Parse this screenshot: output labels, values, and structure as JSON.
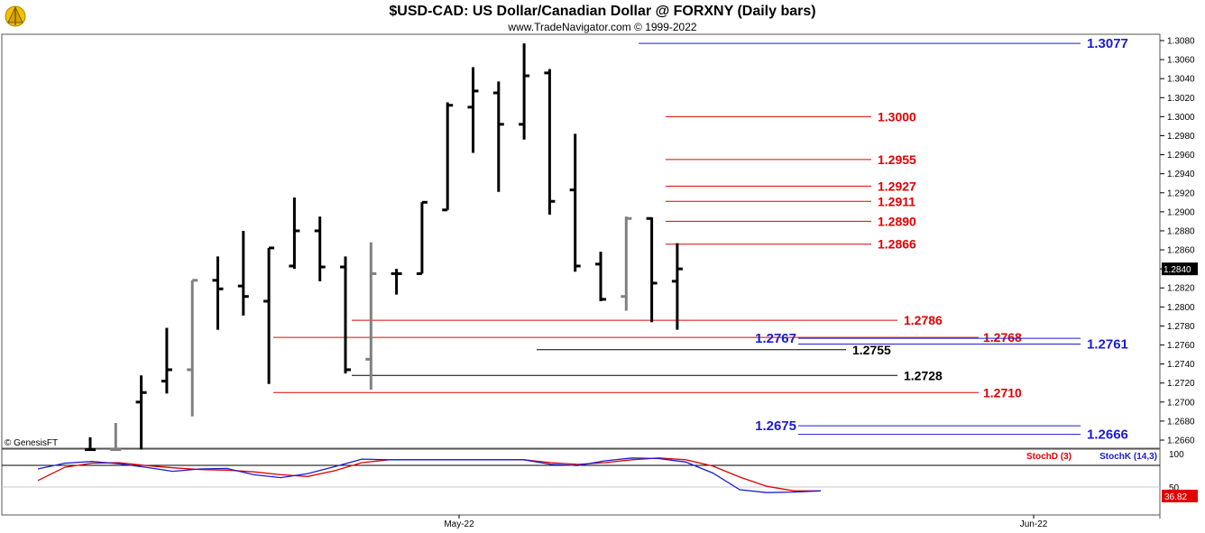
{
  "chart_data": {
    "type": "ohlc",
    "title": "$USD-CAD:  US Dollar/Canadian Dollar @ FORXNY  (Daily bars)",
    "subtitle": "www.TradeNavigator.com © 1999-2022",
    "watermark": "© GenesisFT",
    "ylim": [
      1.265,
      1.309
    ],
    "y_ticks": [
      "1.3080",
      "1.3060",
      "1.3040",
      "1.3020",
      "1.3000",
      "1.2980",
      "1.2960",
      "1.2940",
      "1.2920",
      "1.2900",
      "1.2880",
      "1.2860",
      "1.2840",
      "1.2820",
      "1.2800",
      "1.2780",
      "1.2760",
      "1.2740",
      "1.2720",
      "1.2700",
      "1.2680",
      "1.2660"
    ],
    "last_price": "1.2840",
    "x_labels": [
      "May-22",
      "Jun-22"
    ],
    "bars": [
      {
        "o": 1.265,
        "h": 1.2663,
        "l": 1.265,
        "c": 1.265,
        "gray": false
      },
      {
        "o": 1.265,
        "h": 1.2678,
        "l": 1.265,
        "c": 1.265,
        "gray": true
      },
      {
        "o": 1.27,
        "h": 1.2728,
        "l": 1.265,
        "c": 1.271,
        "gray": false
      },
      {
        "o": 1.2722,
        "h": 1.2778,
        "l": 1.2709,
        "c": 1.2734,
        "gray": false
      },
      {
        "o": 1.2734,
        "h": 1.2828,
        "l": 1.2685,
        "c": 1.2828,
        "gray": true
      },
      {
        "o": 1.2828,
        "h": 1.2853,
        "l": 1.2776,
        "c": 1.2819,
        "gray": false
      },
      {
        "o": 1.2822,
        "h": 1.288,
        "l": 1.2791,
        "c": 1.2811,
        "gray": false
      },
      {
        "o": 1.2806,
        "h": 1.2862,
        "l": 1.2719,
        "c": 1.2862,
        "gray": false
      },
      {
        "o": 1.2843,
        "h": 1.2915,
        "l": 1.284,
        "c": 1.288,
        "gray": false
      },
      {
        "o": 1.288,
        "h": 1.2895,
        "l": 1.2827,
        "c": 1.2842,
        "gray": false
      },
      {
        "o": 1.2842,
        "h": 1.2853,
        "l": 1.273,
        "c": 1.2734,
        "gray": false
      },
      {
        "o": 1.2745,
        "h": 1.2868,
        "l": 1.2713,
        "c": 1.2835,
        "gray": true
      },
      {
        "o": 1.2835,
        "h": 1.284,
        "l": 1.2813,
        "c": 1.2835,
        "gray": false
      },
      {
        "o": 1.2835,
        "h": 1.291,
        "l": 1.2835,
        "c": 1.291,
        "gray": false
      },
      {
        "o": 1.2902,
        "h": 1.3015,
        "l": 1.2902,
        "c": 1.3012,
        "gray": false
      },
      {
        "o": 1.301,
        "h": 1.3052,
        "l": 1.2962,
        "c": 1.3027,
        "gray": false
      },
      {
        "o": 1.3025,
        "h": 1.3037,
        "l": 1.2921,
        "c": 1.2992,
        "gray": false
      },
      {
        "o": 1.2992,
        "h": 1.3077,
        "l": 1.2976,
        "c": 1.3043,
        "gray": false
      },
      {
        "o": 1.3046,
        "h": 1.305,
        "l": 1.2897,
        "c": 1.2911,
        "gray": false
      },
      {
        "o": 1.2923,
        "h": 1.2982,
        "l": 1.2837,
        "c": 1.2843,
        "gray": false
      },
      {
        "o": 1.2845,
        "h": 1.2858,
        "l": 1.2806,
        "c": 1.2808,
        "gray": false
      },
      {
        "o": 1.2811,
        "h": 1.2895,
        "l": 1.2796,
        "c": 1.2893,
        "gray": true
      },
      {
        "o": 1.2893,
        "h": 1.2894,
        "l": 1.2784,
        "c": 1.2825,
        "gray": false
      },
      {
        "o": 1.2827,
        "h": 1.2867,
        "l": 1.2776,
        "c": 1.284,
        "gray": false
      }
    ],
    "levels": [
      {
        "price": "1.3077",
        "color": "#1c1cd0"
      },
      {
        "price": "1.3000",
        "color": "#e00000"
      },
      {
        "price": "1.2955",
        "color": "#e00000"
      },
      {
        "price": "1.2927",
        "color": "#e00000"
      },
      {
        "price": "1.2911",
        "color": "#e00000"
      },
      {
        "price": "1.2890",
        "color": "#e00000"
      },
      {
        "price": "1.2866",
        "color": "#e00000"
      },
      {
        "price": "1.2786",
        "color": "#e00000"
      },
      {
        "price": "1.2768",
        "color": "#e00000"
      },
      {
        "price": "1.2767",
        "color": "#1c1cd0"
      },
      {
        "price": "1.2761",
        "color": "#1c1cd0"
      },
      {
        "price": "1.2755",
        "color": "#000000"
      },
      {
        "price": "1.2728",
        "color": "#000000"
      },
      {
        "price": "1.2710",
        "color": "#e00000"
      },
      {
        "price": "1.2675",
        "color": "#1c1cd0"
      },
      {
        "price": "1.2666",
        "color": "#1c1cd0"
      }
    ],
    "stochastic": {
      "labels": [
        "StochD (3)",
        "StochK (14,3)"
      ],
      "label_colors": [
        "#e00000",
        "#1c1cd0"
      ],
      "ticks": [
        "100",
        "50"
      ],
      "last_value": "36.82",
      "k_values": [
        75,
        85,
        88,
        84,
        78,
        71,
        75,
        76,
        65,
        60,
        67,
        79,
        92,
        91,
        91,
        91,
        91,
        91,
        91,
        83,
        81,
        89,
        94,
        93,
        87,
        68,
        39,
        34,
        35,
        37
      ],
      "d_values": [
        55,
        78,
        85,
        86,
        81,
        77,
        74,
        73,
        70,
        65,
        62,
        72,
        86,
        91,
        91,
        91,
        91,
        91,
        91,
        86,
        83,
        86,
        91,
        94,
        91,
        80,
        61,
        45,
        37,
        37
      ]
    }
  }
}
